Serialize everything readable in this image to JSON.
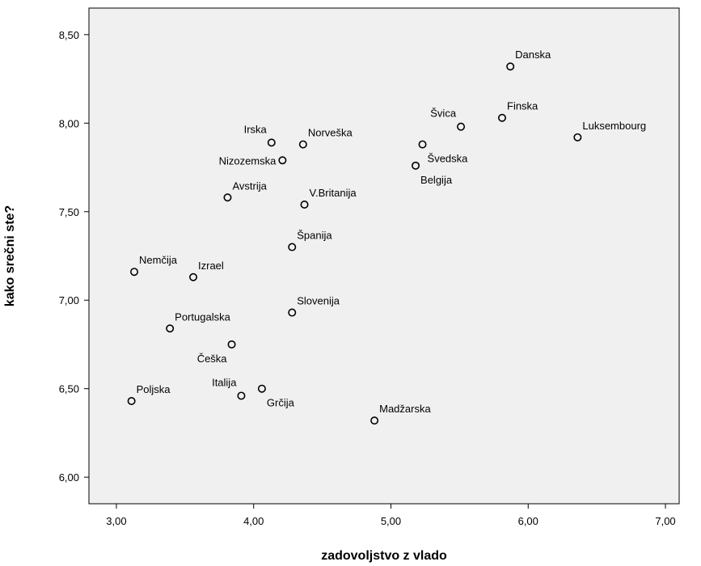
{
  "chart_data": {
    "type": "scatter",
    "xlabel": "zadovoljstvo z vlado",
    "ylabel": "kako srečni ste?",
    "xlim": [
      2.8,
      7.1
    ],
    "ylim": [
      5.85,
      8.65
    ],
    "xticks": [
      {
        "value": 3.0,
        "label": "3,00"
      },
      {
        "value": 4.0,
        "label": "4,00"
      },
      {
        "value": 5.0,
        "label": "5,00"
      },
      {
        "value": 6.0,
        "label": "6,00"
      },
      {
        "value": 7.0,
        "label": "7,00"
      }
    ],
    "yticks": [
      {
        "value": 6.0,
        "label": "6,00"
      },
      {
        "value": 6.5,
        "label": "6,50"
      },
      {
        "value": 7.0,
        "label": "7,00"
      },
      {
        "value": 7.5,
        "label": "7,50"
      },
      {
        "value": 8.0,
        "label": "8,00"
      },
      {
        "value": 8.5,
        "label": "8,50"
      }
    ],
    "grid": false,
    "colors": {
      "plot_background": "#f0f0f0",
      "marker": "#000000",
      "frame": "#000000"
    },
    "points": [
      {
        "label": "Danska",
        "x": 5.87,
        "y": 8.32,
        "pos": "above-right"
      },
      {
        "label": "Finska",
        "x": 5.81,
        "y": 8.03,
        "pos": "above-right"
      },
      {
        "label": "Švica",
        "x": 5.51,
        "y": 7.98,
        "pos": "above-left"
      },
      {
        "label": "Luksembourg",
        "x": 6.36,
        "y": 7.92,
        "pos": "above-right"
      },
      {
        "label": "Švedska",
        "x": 5.23,
        "y": 7.88,
        "pos": "below-right"
      },
      {
        "label": "Belgija",
        "x": 5.18,
        "y": 7.76,
        "pos": "below-right"
      },
      {
        "label": "Irska",
        "x": 4.13,
        "y": 7.89,
        "pos": "above-left"
      },
      {
        "label": "Norveška",
        "x": 4.36,
        "y": 7.88,
        "pos": "above-right"
      },
      {
        "label": "Nizozemska",
        "x": 4.21,
        "y": 7.79,
        "pos": "left"
      },
      {
        "label": "Avstrija",
        "x": 3.81,
        "y": 7.58,
        "pos": "above-right"
      },
      {
        "label": "V.Britanija",
        "x": 4.37,
        "y": 7.54,
        "pos": "above-right"
      },
      {
        "label": "Španija",
        "x": 4.28,
        "y": 7.3,
        "pos": "above-right"
      },
      {
        "label": "Nemčija",
        "x": 3.13,
        "y": 7.16,
        "pos": "above-right"
      },
      {
        "label": "Izrael",
        "x": 3.56,
        "y": 7.13,
        "pos": "above-right"
      },
      {
        "label": "Slovenija",
        "x": 4.28,
        "y": 6.93,
        "pos": "above-right"
      },
      {
        "label": "Portugalska",
        "x": 3.39,
        "y": 6.84,
        "pos": "above-right"
      },
      {
        "label": "Češka",
        "x": 3.84,
        "y": 6.75,
        "pos": "below-left"
      },
      {
        "label": "Italija",
        "x": 3.91,
        "y": 6.46,
        "pos": "above-left"
      },
      {
        "label": "Grčija",
        "x": 4.06,
        "y": 6.5,
        "pos": "below-right"
      },
      {
        "label": "Poljska",
        "x": 3.11,
        "y": 6.43,
        "pos": "above-right"
      },
      {
        "label": "Madžarska",
        "x": 4.88,
        "y": 6.32,
        "pos": "above-right"
      }
    ]
  }
}
